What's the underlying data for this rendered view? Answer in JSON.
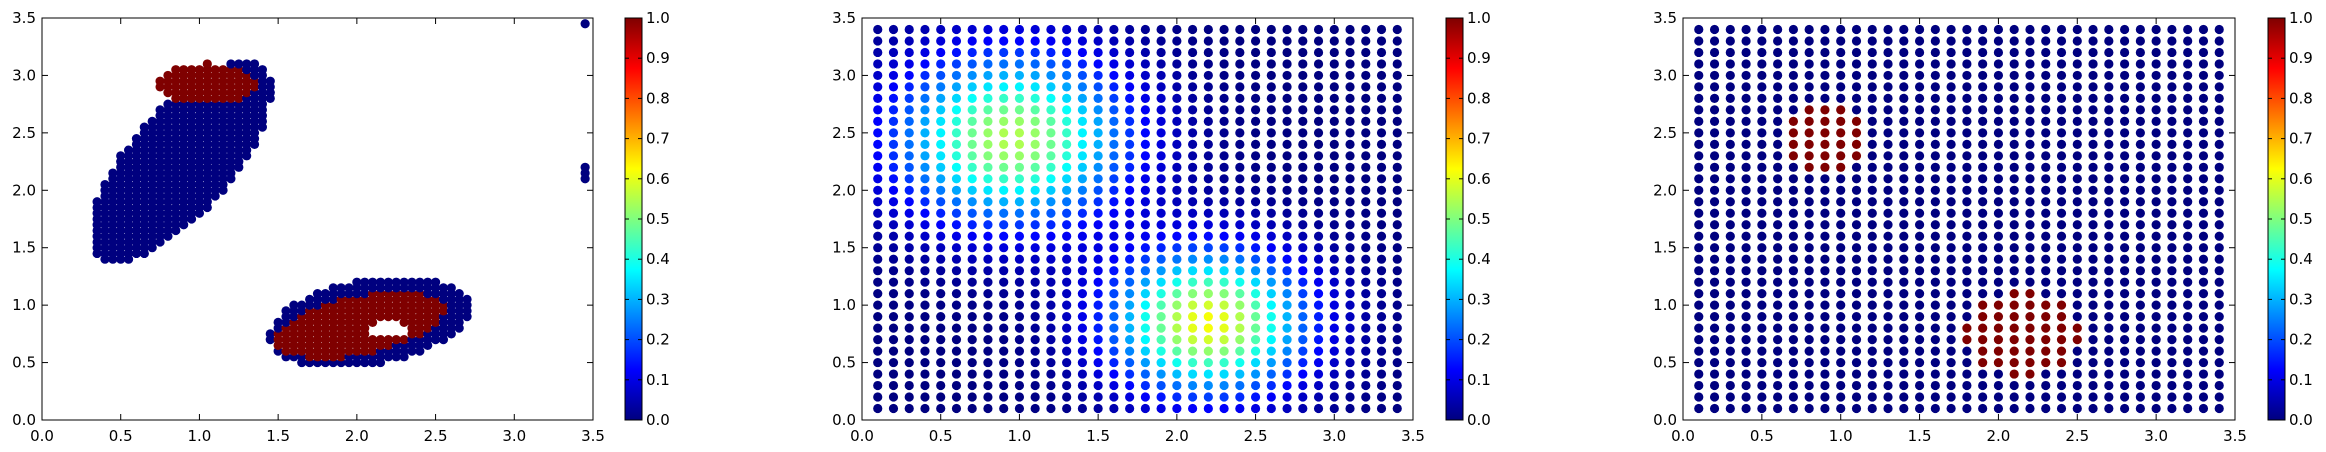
{
  "figure": {
    "background": "#ffffff"
  },
  "colormap": {
    "name": "jet",
    "stops": [
      "#00007f",
      "#0000ff",
      "#007fff",
      "#00ffff",
      "#7fff7f",
      "#ffff00",
      "#ff7f00",
      "#ff0000",
      "#7f0000"
    ]
  },
  "chart_data": [
    {
      "type": "scatter",
      "title": "",
      "xlabel": "",
      "ylabel": "",
      "xlim": [
        0,
        3.5
      ],
      "ylim": [
        0,
        3.5
      ],
      "xticks": [
        0.0,
        0.5,
        1.0,
        1.5,
        2.0,
        2.5,
        3.0,
        3.5
      ],
      "yticks": [
        0.0,
        0.5,
        1.0,
        1.5,
        2.0,
        2.5,
        3.0,
        3.5
      ],
      "colorbar": {
        "range": [
          0,
          1
        ],
        "ticks": [
          0.0,
          0.1,
          0.2,
          0.3,
          0.4,
          0.5,
          0.6,
          0.7,
          0.8,
          0.9,
          1.0
        ],
        "colormap": "jet"
      },
      "grid": false,
      "description_of_points": "Scattered subset of grid points forming two blobs with binary values",
      "regions": [
        {
          "shape": "elongated blob",
          "x_range": [
            0.35,
            1.45
          ],
          "y_range": [
            1.35,
            3.15
          ],
          "value": 0
        },
        {
          "shape": "cap of upper blob",
          "x_range": [
            0.75,
            1.35
          ],
          "y_range": [
            2.75,
            3.1
          ],
          "value": 1
        },
        {
          "shape": "ring blob",
          "x_range": [
            1.45,
            2.7
          ],
          "y_range": [
            0.35,
            1.35
          ],
          "value": 0
        },
        {
          "shape": "core of ring blob with hole",
          "x_range": [
            1.45,
            2.6
          ],
          "y_range": [
            0.45,
            1.2
          ],
          "value": 1
        }
      ],
      "isolated_points": [
        {
          "x": 3.45,
          "y": 3.45,
          "value": 0
        },
        {
          "x": 3.45,
          "y": 2.2,
          "value": 0
        },
        {
          "x": 3.45,
          "y": 2.15,
          "value": 0
        },
        {
          "x": 3.45,
          "y": 2.1,
          "value": 0
        }
      ]
    },
    {
      "type": "scatter",
      "title": "",
      "xlabel": "",
      "ylabel": "",
      "xlim": [
        0,
        3.5
      ],
      "ylim": [
        0,
        3.5
      ],
      "xticks": [
        0.0,
        0.5,
        1.0,
        1.5,
        2.0,
        2.5,
        3.0,
        3.5
      ],
      "yticks": [
        0.0,
        0.5,
        1.0,
        1.5,
        2.0,
        2.5,
        3.0,
        3.5
      ],
      "colorbar": {
        "range": [
          0,
          1
        ],
        "ticks": [
          0.0,
          0.1,
          0.2,
          0.3,
          0.4,
          0.5,
          0.6,
          0.7,
          0.8,
          0.9,
          1.0
        ],
        "colormap": "jet"
      },
      "grid": false,
      "grid_points": {
        "x_start": 0.1,
        "x_end": 3.4,
        "y_start": 0.1,
        "y_end": 3.4,
        "step": 0.1
      },
      "field": {
        "type": "sum of gaussian bumps",
        "bumps": [
          {
            "x": 0.95,
            "y": 2.45,
            "peak": 0.55,
            "sigma": 0.5
          },
          {
            "x": 2.2,
            "y": 0.85,
            "peak": 0.62,
            "sigma": 0.42
          }
        ]
      }
    },
    {
      "type": "scatter",
      "title": "",
      "xlabel": "",
      "ylabel": "",
      "xlim": [
        0,
        3.5
      ],
      "ylim": [
        0,
        3.5
      ],
      "xticks": [
        0.0,
        0.5,
        1.0,
        1.5,
        2.0,
        2.5,
        3.0,
        3.5
      ],
      "yticks": [
        0.0,
        0.5,
        1.0,
        1.5,
        2.0,
        2.5,
        3.0,
        3.5
      ],
      "colorbar": {
        "range": [
          0,
          1
        ],
        "ticks": [
          0.0,
          0.1,
          0.2,
          0.3,
          0.4,
          0.5,
          0.6,
          0.7,
          0.8,
          0.9,
          1.0
        ],
        "colormap": "jet"
      },
      "grid": false,
      "grid_points": {
        "x_start": 0.1,
        "x_end": 3.4,
        "y_start": 0.1,
        "y_end": 3.4,
        "step": 0.1
      },
      "field": {
        "type": "binary disks",
        "background_value": 0,
        "disks": [
          {
            "x": 0.9,
            "y": 2.45,
            "radius": 0.27,
            "value": 1
          },
          {
            "x": 2.15,
            "y": 0.75,
            "radius": 0.38,
            "value": 1
          }
        ]
      }
    }
  ]
}
